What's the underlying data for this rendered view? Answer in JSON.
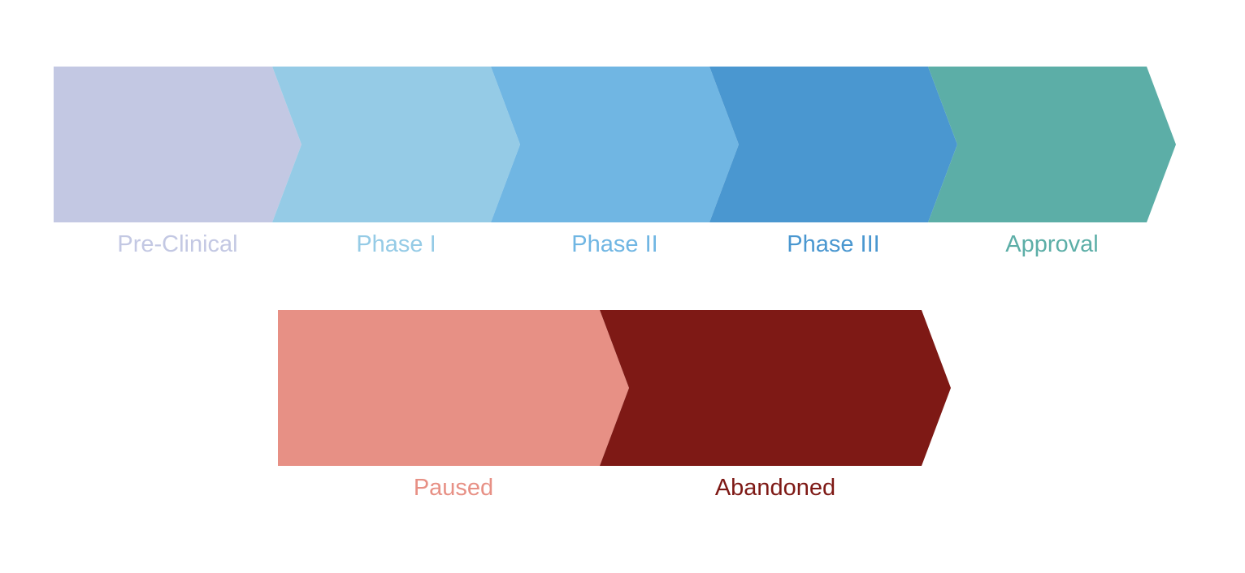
{
  "pipeline": {
    "stages": [
      {
        "label": "Pre-Clinical",
        "color": "#c3c8e3"
      },
      {
        "label": "Phase I",
        "color": "#95cbe6"
      },
      {
        "label": "Phase II",
        "color": "#70b6e3"
      },
      {
        "label": "Phase III",
        "color": "#4a97d0"
      },
      {
        "label": "Approval",
        "color": "#5caea7"
      }
    ]
  },
  "outcomes": {
    "stages": [
      {
        "label": "Paused",
        "color": "#e79085"
      },
      {
        "label": "Abandoned",
        "color": "#7e1915"
      }
    ]
  }
}
